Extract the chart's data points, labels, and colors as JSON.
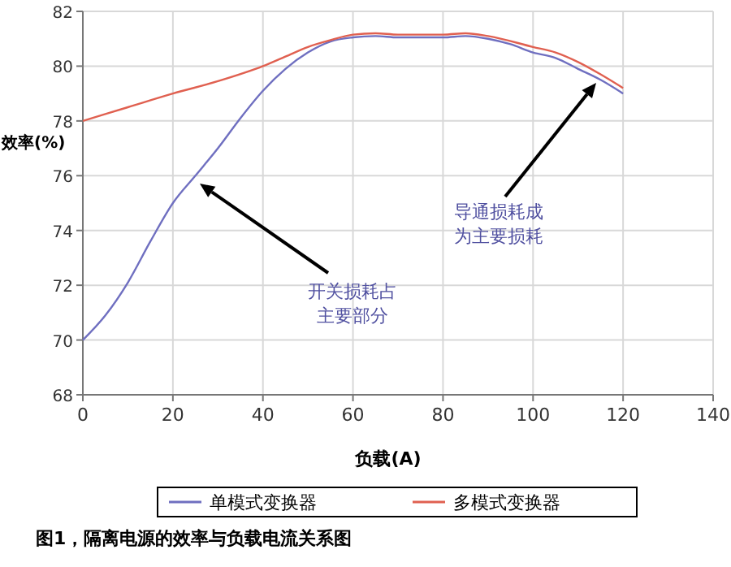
{
  "chart_data": {
    "type": "line",
    "xlabel": "负载(A)",
    "ylabel": "效率(%)",
    "xlim": [
      0,
      140
    ],
    "xticks": [
      0,
      20,
      40,
      60,
      80,
      100,
      120,
      140
    ],
    "ylim": [
      68,
      82
    ],
    "yticks": [
      68,
      70,
      72,
      74,
      76,
      78,
      80,
      82
    ],
    "grid": true,
    "legend": "bottom",
    "marker": "none",
    "line_style": "solid",
    "series": [
      {
        "name": "单模式变换器",
        "color": "#6f6fc0",
        "x": [
          0,
          5,
          10,
          15,
          20,
          25,
          30,
          35,
          40,
          45,
          50,
          55,
          60,
          65,
          70,
          75,
          80,
          85,
          90,
          95,
          100,
          105,
          110,
          115,
          120
        ],
        "values": [
          70,
          70.9,
          72.1,
          73.6,
          75,
          76,
          77,
          78.1,
          79.1,
          79.9,
          80.5,
          80.9,
          81.05,
          81.1,
          81.05,
          81.05,
          81.05,
          81.1,
          81,
          80.8,
          80.5,
          80.3,
          79.9,
          79.5,
          79
        ]
      },
      {
        "name": "多模式变换器",
        "color": "#e06050",
        "x": [
          0,
          10,
          20,
          30,
          40,
          45,
          50,
          55,
          60,
          65,
          70,
          80,
          85,
          90,
          100,
          105,
          110,
          115,
          120
        ],
        "values": [
          78,
          78.5,
          79,
          79.45,
          80,
          80.35,
          80.7,
          80.95,
          81.15,
          81.2,
          81.15,
          81.15,
          81.2,
          81.1,
          80.7,
          80.5,
          80.15,
          79.7,
          79.2
        ]
      }
    ],
    "annotations": [
      "开关损耗占主要部分",
      "导通损耗成为主要损耗",
      "图1，隔离电源的效率与负载电流关系图"
    ]
  }
}
